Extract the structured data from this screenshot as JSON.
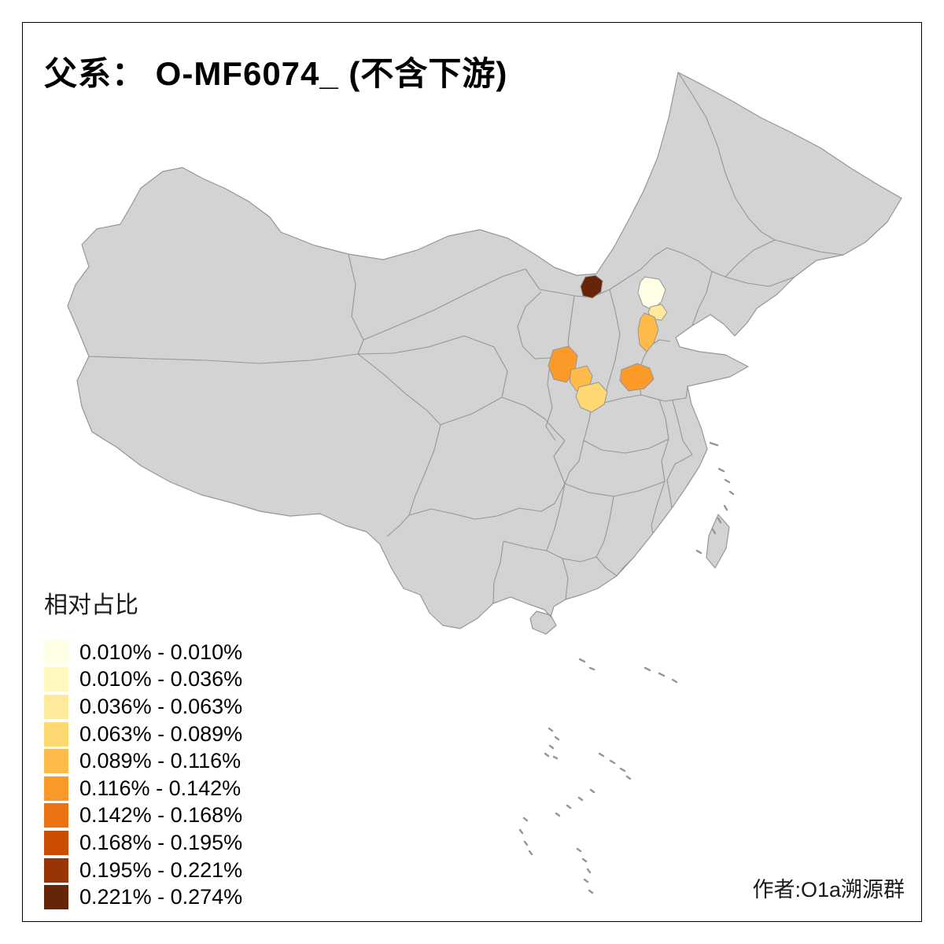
{
  "title": "父系： O-MF6074_ (不含下游)",
  "legend": {
    "title": "相对占比",
    "entries": [
      {
        "color": "#FFFFE5",
        "label": "0.010% - 0.010%"
      },
      {
        "color": "#FFF8C1",
        "label": "0.010% - 0.036%"
      },
      {
        "color": "#FEEA9A",
        "label": "0.036% - 0.063%"
      },
      {
        "color": "#FED871",
        "label": "0.063% - 0.089%"
      },
      {
        "color": "#FEBB4A",
        "label": "0.089% - 0.116%"
      },
      {
        "color": "#FB9A29",
        "label": "0.116% - 0.142%"
      },
      {
        "color": "#EC7014",
        "label": "0.142% - 0.168%"
      },
      {
        "color": "#CC4C02",
        "label": "0.168% - 0.195%"
      },
      {
        "color": "#993404",
        "label": "0.195% - 0.221%"
      },
      {
        "color": "#662506",
        "label": "0.221% - 0.274%"
      }
    ]
  },
  "credit": "作者:O1a溯源群",
  "map": {
    "land_fill": "#D3D3D3",
    "border_color": "#969696",
    "regions": [
      {
        "id": "region-dark-north",
        "color": "#662506",
        "range": "0.221% - 0.274%"
      },
      {
        "id": "region-beijing-pale",
        "color": "#FFFFE5",
        "range": "0.010% - 0.010%"
      },
      {
        "id": "region-paleyellow-south",
        "color": "#FEEA9A",
        "range": "0.036% - 0.063%"
      },
      {
        "id": "region-orange-strip",
        "color": "#FEBB4A",
        "range": "0.089% - 0.116%"
      },
      {
        "id": "region-orange-west",
        "color": "#FB9A29",
        "range": "0.116% - 0.142%"
      },
      {
        "id": "region-amber-central",
        "color": "#FEBB4A",
        "range": "0.089% - 0.116%"
      },
      {
        "id": "region-yellow-central",
        "color": "#FED871",
        "range": "0.063% - 0.089%"
      },
      {
        "id": "region-orange-east",
        "color": "#FB9A29",
        "range": "0.116% - 0.142%"
      }
    ]
  }
}
